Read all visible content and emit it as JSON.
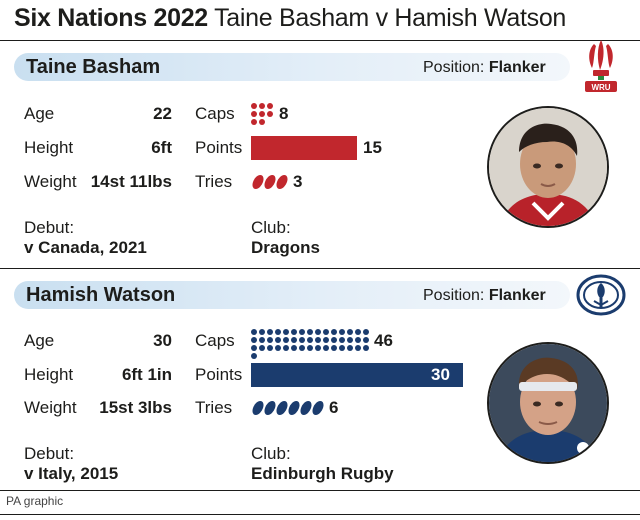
{
  "title": {
    "bold": "Six Nations 2022",
    "rest": "Taine Basham v Hamish Watson"
  },
  "colors": {
    "wales": "#c1272d",
    "scotland": "#1b3c6e"
  },
  "players": [
    {
      "name": "Taine Basham",
      "position_label": "Position:",
      "position": "Flanker",
      "age_label": "Age",
      "age": "22",
      "height_label": "Height",
      "height": "6ft",
      "weight_label": "Weight",
      "weight": "14st 11lbs",
      "caps_label": "Caps",
      "caps": "8",
      "caps_count": 8,
      "points_label": "Points",
      "points": "15",
      "points_value": 15,
      "tries_label": "Tries",
      "tries": "3",
      "tries_count": 3,
      "debut_label": "Debut:",
      "debut": "v Canada, 2021",
      "club_label": "Club:",
      "club": "Dragons",
      "badge_icon": "wru-feathers-icon",
      "badge_text": "WRU"
    },
    {
      "name": "Hamish Watson",
      "position_label": "Position:",
      "position": "Flanker",
      "age_label": "Age",
      "age": "30",
      "height_label": "Height",
      "height": "6ft 1in",
      "weight_label": "Weight",
      "weight": "15st 3lbs",
      "caps_label": "Caps",
      "caps": "46",
      "caps_count": 46,
      "points_label": "Points",
      "points": "30",
      "points_value": 30,
      "tries_label": "Tries",
      "tries": "6",
      "tries_count": 6,
      "debut_label": "Debut:",
      "debut": "v Italy, 2015",
      "club_label": "Club:",
      "club": "Edinburgh Rugby",
      "badge_icon": "scottish-rugby-thistle-icon"
    }
  ],
  "footer": "PA graphic"
}
